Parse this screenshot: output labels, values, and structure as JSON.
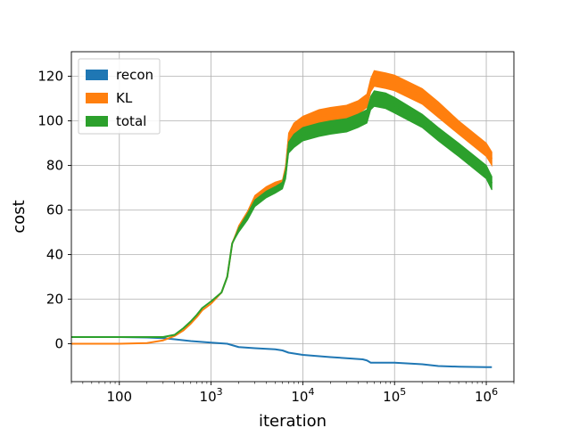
{
  "chart_data": {
    "type": "line",
    "x_scale": "log",
    "xlabel": "iteration",
    "ylabel": "cost",
    "xlim": [
      30,
      2000000
    ],
    "ylim": [
      -17,
      131
    ],
    "x_ticks": [
      {
        "value": 100,
        "base": "100",
        "exp": ""
      },
      {
        "value": 1000,
        "base": "10",
        "exp": "3"
      },
      {
        "value": 10000,
        "base": "10",
        "exp": "4"
      },
      {
        "value": 100000,
        "base": "10",
        "exp": "5"
      },
      {
        "value": 1000000,
        "base": "10",
        "exp": "6"
      }
    ],
    "y_ticks": [
      0,
      20,
      40,
      60,
      80,
      100,
      120
    ],
    "grid": true,
    "legend_position": "top-left",
    "series": [
      {
        "name": "recon",
        "color": "#1f77b4",
        "x": [
          30,
          100,
          200,
          300,
          400,
          600,
          1000,
          1500,
          2000,
          3000,
          5000,
          6000,
          7000,
          10000,
          20000,
          30000,
          45000,
          50000,
          55000,
          60000,
          100000,
          200000,
          300000,
          500000,
          1000000,
          1150000
        ],
        "y": [
          3,
          3,
          2.8,
          2.5,
          2,
          1.2,
          0.5,
          0,
          -1.5,
          -2,
          -2.5,
          -3,
          -4,
          -5,
          -6,
          -6.5,
          -7,
          -7.5,
          -8.5,
          -8.5,
          -8.5,
          -9.2,
          -10,
          -10.3,
          -10.5,
          -10.5
        ],
        "band": []
      },
      {
        "name": "KL",
        "color": "#ff7f0e",
        "x": [
          30,
          100,
          200,
          300,
          400,
          500,
          600,
          700,
          800,
          1000,
          1300,
          1500,
          1700,
          2000,
          2500,
          3000,
          4000,
          5000,
          6000,
          6500,
          7000,
          8000,
          10000,
          15000,
          20000,
          30000,
          40000,
          50000,
          55000,
          60000,
          80000,
          100000,
          200000,
          300000,
          500000,
          1000000,
          1150000
        ],
        "y": [
          0,
          0,
          0.3,
          1.5,
          3.5,
          6,
          9,
          12,
          15,
          18,
          23,
          30,
          45,
          52,
          58,
          65,
          69,
          71,
          72,
          78,
          92,
          96,
          99,
          102,
          103,
          104,
          106,
          109,
          116,
          119,
          118,
          117,
          111,
          105,
          97,
          87,
          83
        ],
        "band": [
          0,
          0,
          0,
          0,
          0,
          0,
          0,
          0,
          0,
          0,
          0,
          0,
          0,
          1,
          1.5,
          1.5,
          1.5,
          1.5,
          1.5,
          2,
          2.5,
          3,
          3,
          3,
          3,
          3,
          3,
          3,
          3,
          3.5,
          3.5,
          3.5,
          3.5,
          3.5,
          3,
          3,
          3
        ]
      },
      {
        "name": "total",
        "color": "#2ca02c",
        "x": [
          30,
          100,
          200,
          300,
          400,
          500,
          600,
          700,
          800,
          1000,
          1300,
          1500,
          1700,
          2000,
          2500,
          3000,
          4000,
          5000,
          6000,
          6500,
          7000,
          8000,
          10000,
          15000,
          20000,
          30000,
          40000,
          50000,
          55000,
          60000,
          80000,
          100000,
          200000,
          300000,
          500000,
          1000000,
          1150000
        ],
        "y": [
          3,
          3,
          3,
          3,
          4,
          7,
          10,
          13,
          16,
          19,
          23,
          30,
          45,
          51,
          57,
          63,
          67,
          69,
          71,
          76,
          88,
          91,
          94,
          96,
          97,
          98,
          100,
          102,
          108,
          110,
          109,
          107,
          100,
          94,
          87,
          77,
          72
        ],
        "band": [
          0,
          0,
          0,
          0,
          0,
          0,
          0,
          0,
          0,
          0,
          0,
          0,
          0,
          1,
          1.5,
          1.5,
          1.5,
          1.5,
          1.5,
          2,
          2.5,
          3,
          3,
          3,
          3,
          3,
          3,
          3,
          3,
          3.5,
          3.5,
          3.5,
          3,
          3,
          3,
          3,
          3
        ]
      }
    ]
  }
}
